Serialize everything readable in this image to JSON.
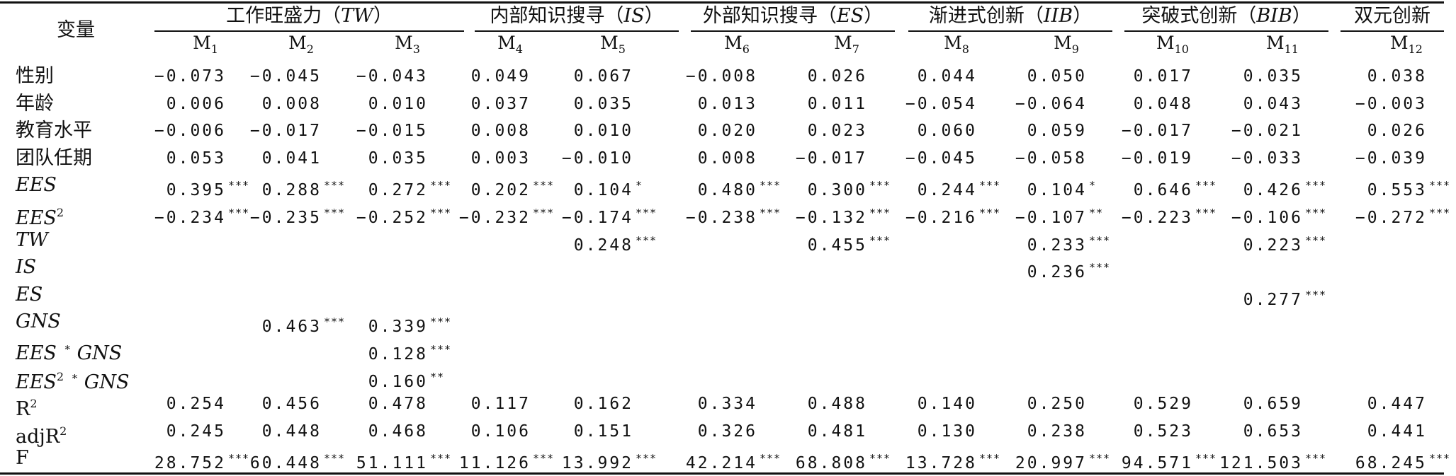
{
  "table": {
    "corner_label": "变量",
    "groups": [
      {
        "title": "工作旺盛力（TW）",
        "cols": [
          "M1",
          "M2",
          "M3"
        ]
      },
      {
        "title": "内部知识搜寻（IS）",
        "cols": [
          "M4",
          "M5"
        ]
      },
      {
        "title": "外部知识搜寻（ES）",
        "cols": [
          "M6",
          "M7"
        ]
      },
      {
        "title": "渐进式创新（IIB）",
        "cols": [
          "M8",
          "M9"
        ]
      },
      {
        "title": "突破式创新（BIB）",
        "cols": [
          "M10",
          "M11"
        ]
      },
      {
        "title": "双元创新",
        "cols": [
          "M12"
        ]
      }
    ],
    "models": [
      "M1",
      "M2",
      "M3",
      "M4",
      "M5",
      "M6",
      "M7",
      "M8",
      "M9",
      "M10",
      "M11",
      "M12"
    ],
    "rows": [
      {
        "label": "性别",
        "values": [
          "−0.073",
          "−0.045",
          "−0.043",
          "0.049",
          "0.067",
          "−0.008",
          "0.026",
          "0.044",
          "0.050",
          "0.017",
          "0.035",
          "0.038"
        ]
      },
      {
        "label": "年龄",
        "values": [
          "0.006",
          "0.008",
          "0.010",
          "0.037",
          "0.035",
          "0.013",
          "0.011",
          "−0.054",
          "−0.064",
          "0.048",
          "0.043",
          "−0.003"
        ]
      },
      {
        "label": "教育水平",
        "values": [
          "−0.006",
          "−0.017",
          "−0.015",
          "0.008",
          "0.010",
          "0.020",
          "0.023",
          "0.060",
          "0.059",
          "−0.017",
          "−0.021",
          "0.026"
        ]
      },
      {
        "label": "团队任期",
        "values": [
          "0.053",
          "0.041",
          "0.035",
          "0.003",
          "−0.010",
          "0.008",
          "−0.017",
          "−0.045",
          "−0.058",
          "−0.019",
          "−0.033",
          "−0.039"
        ]
      },
      {
        "label": "EES",
        "values": [
          "0.395***",
          "0.288***",
          "0.272***",
          "0.202***",
          "0.104*",
          "0.480***",
          "0.300***",
          "0.244***",
          "0.104*",
          "0.646***",
          "0.426***",
          "0.553***"
        ]
      },
      {
        "label": "EES2",
        "values": [
          "−0.234***",
          "−0.235***",
          "−0.252***",
          "−0.232***",
          "−0.174***",
          "−0.238***",
          "−0.132***",
          "−0.216***",
          "−0.107**",
          "−0.223***",
          "−0.106***",
          "−0.272***"
        ]
      },
      {
        "label": "TW",
        "values": [
          "",
          "",
          "",
          "",
          "0.248***",
          "",
          "0.455***",
          "",
          "0.233***",
          "",
          "0.223***",
          ""
        ]
      },
      {
        "label": "IS",
        "values": [
          "",
          "",
          "",
          "",
          "",
          "",
          "",
          "",
          "0.236***",
          "",
          "",
          ""
        ]
      },
      {
        "label": "ES",
        "values": [
          "",
          "",
          "",
          "",
          "",
          "",
          "",
          "",
          "",
          "",
          "0.277***",
          ""
        ]
      },
      {
        "label": "GNS",
        "values": [
          "",
          "0.463***",
          "0.339***",
          "",
          "",
          "",
          "",
          "",
          "",
          "",
          "",
          ""
        ]
      },
      {
        "label": "EES * GNS",
        "values": [
          "",
          "",
          "0.128***",
          "",
          "",
          "",
          "",
          "",
          "",
          "",
          "",
          ""
        ]
      },
      {
        "label": "EES2 * GNS",
        "values": [
          "",
          "",
          "0.160**",
          "",
          "",
          "",
          "",
          "",
          "",
          "",
          "",
          ""
        ]
      },
      {
        "label": "R2",
        "values": [
          "0.254",
          "0.456",
          "0.478",
          "0.117",
          "0.162",
          "0.334",
          "0.488",
          "0.140",
          "0.250",
          "0.529",
          "0.659",
          "0.447"
        ]
      },
      {
        "label": "adjR2",
        "values": [
          "0.245",
          "0.448",
          "0.468",
          "0.106",
          "0.151",
          "0.326",
          "0.481",
          "0.130",
          "0.238",
          "0.523",
          "0.653",
          "0.441"
        ]
      },
      {
        "label": "F",
        "values": [
          "28.752***",
          "60.448***",
          "51.111***",
          "11.126***",
          "13.992***",
          "42.214***",
          "68.808***",
          "13.728***",
          "20.997***",
          "94.571***",
          "121.503***",
          "68.245***"
        ]
      }
    ]
  }
}
